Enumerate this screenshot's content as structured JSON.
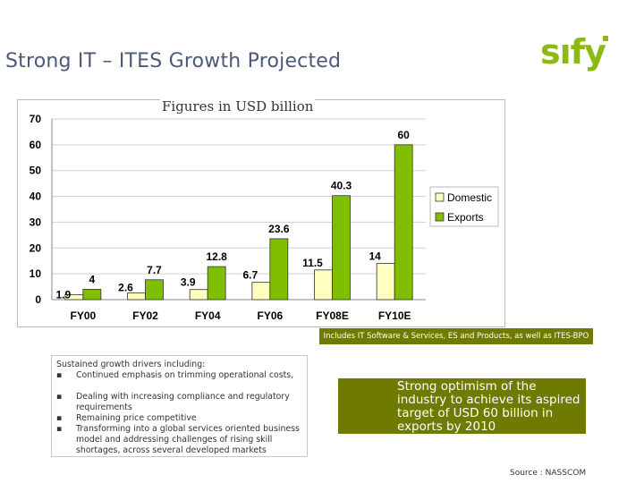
{
  "title": "Strong IT – ITES Growth Projected",
  "logo": "sıfy",
  "chart_subtitle": "Figures in USD billion",
  "note": "Includes IT Software & Services, ES and Products, as well as ITES-BPO",
  "drivers": {
    "heading": "Sustained growth drivers including:",
    "items": [
      "Continued emphasis on trimming operational costs,",
      "Dealing with increasing compliance and regulatory requirements",
      "Remaining price competitive",
      "Transforming into a global services oriented business model and addressing challenges of rising skill shortages, across several developed markets"
    ]
  },
  "optimism": "Strong optimism of the industry to achieve its aspired target of USD 60 billion in exports by 2010",
  "source": "Source : NASSCOM",
  "colors": {
    "domestic": "#ffffc0",
    "exports": "#7fbf00",
    "accent": "#6f7b00",
    "logo": "#8cba13"
  },
  "chart_data": {
    "type": "bar",
    "categories": [
      "FY00",
      "FY02",
      "FY04",
      "FY06",
      "FY08E",
      "FY10E"
    ],
    "series": [
      {
        "name": "Domestic",
        "values": [
          1.9,
          2.6,
          3.9,
          6.7,
          11.5,
          14
        ],
        "labels": [
          "1.9",
          "2.6",
          "3.9",
          "6.7",
          "11.5",
          "14"
        ]
      },
      {
        "name": "Exports",
        "values": [
          4,
          7.7,
          12.8,
          23.6,
          40.3,
          60
        ],
        "labels": [
          "4",
          "7.7",
          "12.8",
          "23.6",
          "40.3",
          "60"
        ]
      }
    ],
    "ylim": [
      0,
      70
    ],
    "yticks": [
      "0",
      "10",
      "20",
      "30",
      "40",
      "50",
      "60",
      "70"
    ],
    "legend": "right",
    "grid": true
  }
}
